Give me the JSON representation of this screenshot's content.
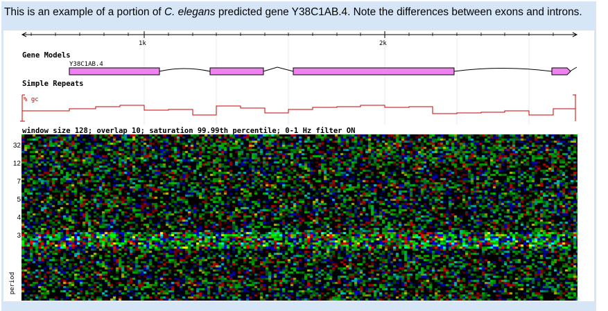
{
  "caption": {
    "before": "This is an example of a portion of ",
    "species": "C. elegans",
    "after": " predicted gene Y38C1AB.4. Note the differences between exons and introns."
  },
  "ruler": {
    "labels": [
      "1k",
      "2k"
    ]
  },
  "tracks": {
    "gene_models_title": "Gene Models",
    "gene_name": "Y38C1AB.4",
    "simple_repeats_title": "Simple Repeats",
    "gc_label": "% gc",
    "heatmap_title": "window size 128; overlap 10; saturation 99.99th percentile; 0-1 Hz filter ON"
  },
  "heatmap": {
    "y_ticks": [
      "32",
      "12",
      "7",
      "5",
      "4",
      "3"
    ],
    "y_label": "period"
  },
  "colors": {
    "panel": "#d6e6f7",
    "exon_fill": "#ee82ee",
    "gc_line": "#cc0000"
  }
}
